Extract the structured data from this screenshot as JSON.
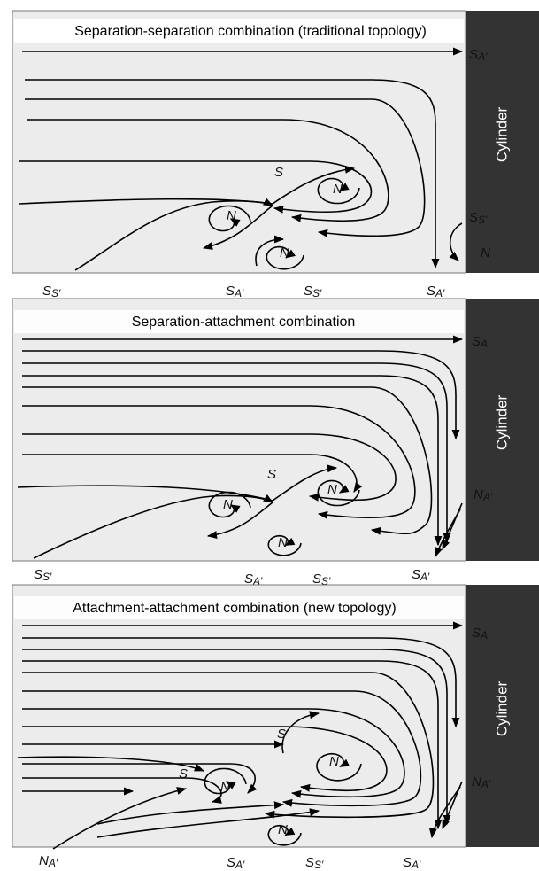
{
  "panels": [
    {
      "title": "Separation-separation combination (traditional topology)",
      "cylinder": "Cylinder",
      "labels": [
        {
          "main": "S",
          "sub": "A′"
        },
        {
          "main": "S"
        },
        {
          "main": "N"
        },
        {
          "main": "N"
        },
        {
          "main": "S",
          "sub": "S′"
        },
        {
          "main": "N"
        },
        {
          "main": "N"
        },
        {
          "main": "S",
          "sub": "S′"
        },
        {
          "main": "S",
          "sub": "A′"
        },
        {
          "main": "S",
          "sub": "S′"
        },
        {
          "main": "S",
          "sub": "A′"
        }
      ]
    },
    {
      "title": "Separation-attachment combination",
      "cylinder": "Cylinder",
      "labels": [
        {
          "main": "S",
          "sub": "A′"
        },
        {
          "main": "S"
        },
        {
          "main": "N"
        },
        {
          "main": "N"
        },
        {
          "main": "N",
          "sub": "A′"
        },
        {
          "main": "N"
        },
        {
          "main": "S",
          "sub": "S′"
        },
        {
          "main": "S",
          "sub": "A′"
        },
        {
          "main": "S",
          "sub": "S′"
        },
        {
          "main": "S",
          "sub": "A′"
        }
      ]
    },
    {
      "title": "Attachment-attachment combination (new topology)",
      "cylinder": "Cylinder",
      "labels": [
        {
          "main": "S",
          "sub": "A′"
        },
        {
          "main": "S"
        },
        {
          "main": "N"
        },
        {
          "main": "S"
        },
        {
          "main": "N"
        },
        {
          "main": "N",
          "sub": "A′"
        },
        {
          "main": "N"
        },
        {
          "main": "N",
          "sub": "A′"
        },
        {
          "main": "S",
          "sub": "A′"
        },
        {
          "main": "S",
          "sub": "S′"
        },
        {
          "main": "S",
          "sub": "A′"
        }
      ]
    }
  ]
}
